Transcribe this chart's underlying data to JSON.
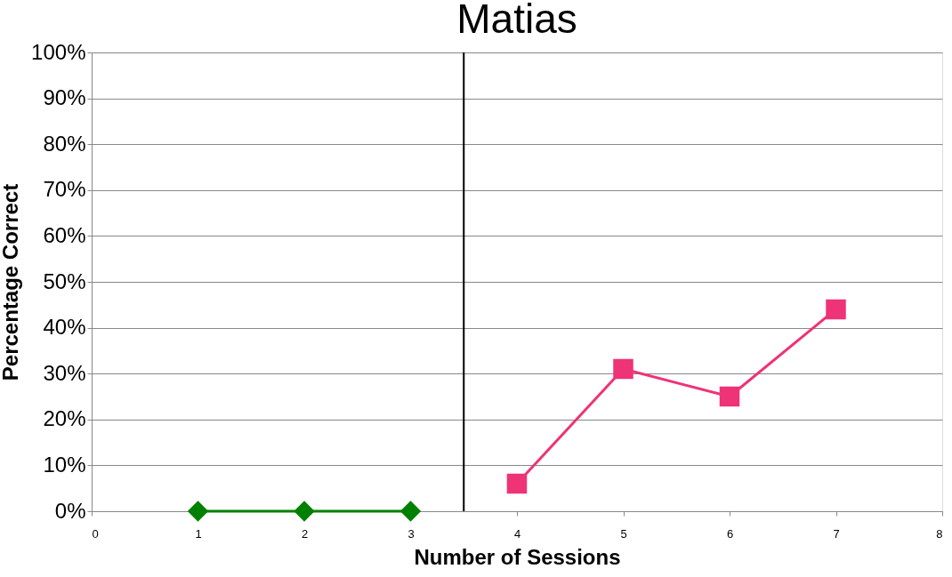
{
  "chart_data": {
    "type": "line",
    "title": "Matias",
    "xlabel": "Number of Sessions",
    "ylabel": "Percentage Correct",
    "xlim": [
      0,
      8
    ],
    "xticks": [
      0,
      1,
      2,
      3,
      4,
      5,
      6,
      7,
      8
    ],
    "ylim": [
      0,
      100
    ],
    "yticks": [
      {
        "value": 0,
        "label": "0%"
      },
      {
        "value": 10,
        "label": "10%"
      },
      {
        "value": 20,
        "label": "20%"
      },
      {
        "value": 30,
        "label": "30%"
      },
      {
        "value": 40,
        "label": "40%"
      },
      {
        "value": 50,
        "label": "50%"
      },
      {
        "value": 60,
        "label": "60%"
      },
      {
        "value": 70,
        "label": "70%"
      },
      {
        "value": 80,
        "label": "80%"
      },
      {
        "value": 90,
        "label": "90%"
      },
      {
        "value": 100,
        "label": "100%"
      }
    ],
    "grid": "y",
    "series": [
      {
        "x": [
          1,
          2,
          3
        ],
        "values": [
          0,
          0,
          0
        ],
        "color": "#008000",
        "marker": "diamond"
      },
      {
        "x": [
          4,
          5,
          6,
          7
        ],
        "values": [
          6,
          31,
          25,
          44
        ],
        "color": "#ee3377",
        "marker": "square"
      }
    ],
    "ref_lines": [
      {
        "axis": "x",
        "value": 3.5,
        "color": "#000000"
      }
    ]
  }
}
